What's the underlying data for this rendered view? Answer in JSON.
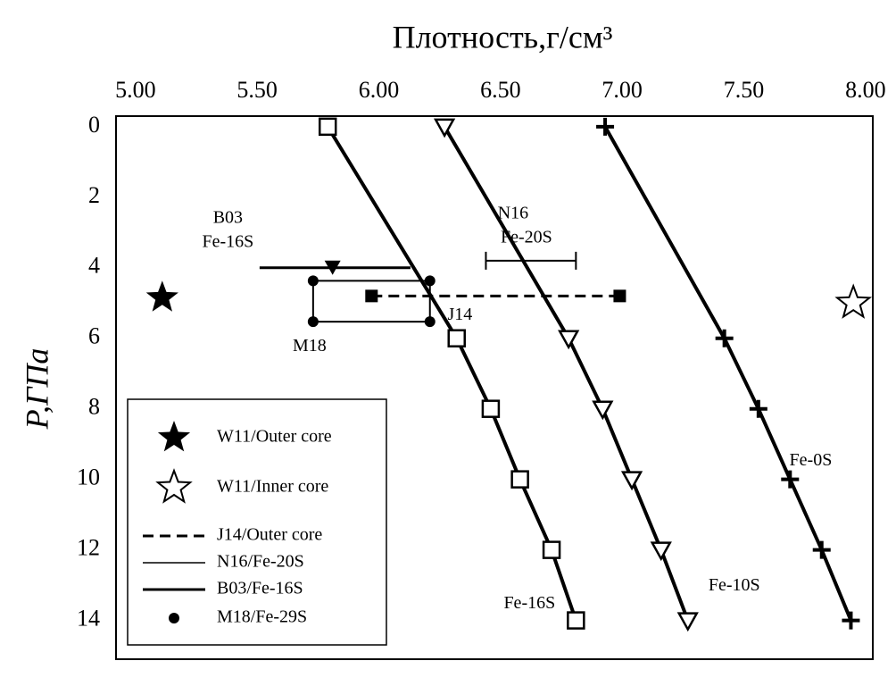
{
  "chart_data": {
    "type": "line",
    "title": "Плотность,г/см³",
    "ylabel": "P,ГПа",
    "xlim": [
      4.92,
      8.03
    ],
    "ylim": [
      -0.3,
      15.1
    ],
    "y_inverted": true,
    "xticks": [
      {
        "value": 5,
        "label": "5.00"
      },
      {
        "value": 5.5,
        "label": "5.50"
      },
      {
        "value": 6,
        "label": "6.00"
      },
      {
        "value": 6.5,
        "label": "6.50"
      },
      {
        "value": 7,
        "label": "7.00"
      },
      {
        "value": 7.5,
        "label": "7.50"
      },
      {
        "value": 8,
        "label": "8.00"
      }
    ],
    "yticks": [
      0,
      2,
      4,
      6,
      8,
      10,
      12,
      14
    ],
    "color": "#000000",
    "series": [
      {
        "name": "Fe-16S",
        "marker": "square",
        "x": [
          5.79,
          6.32,
          6.46,
          6.58,
          6.71,
          6.81
        ],
        "values": [
          0,
          6,
          8,
          10,
          12,
          14
        ]
      },
      {
        "name": "Fe-10S",
        "marker": "triangle",
        "x": [
          6.27,
          6.78,
          6.92,
          7.04,
          7.16,
          7.27
        ],
        "values": [
          0,
          6,
          8,
          10,
          12,
          14
        ]
      },
      {
        "name": "Fe-0S",
        "marker": "cross",
        "x": [
          6.93,
          7.42,
          7.56,
          7.69,
          7.82,
          7.94
        ],
        "values": [
          0,
          6,
          8,
          10,
          12,
          14
        ]
      }
    ],
    "points": [
      {
        "name": "W11/Outer core",
        "marker": "star-filled",
        "x": 5.11,
        "y": 4.85
      },
      {
        "name": "W11/Inner core",
        "marker": "star-open",
        "x": 7.95,
        "y": 5.0
      }
    ],
    "ranges": [
      {
        "name": "J14/Outer core",
        "label": [
          "J14"
        ],
        "style": "dashed",
        "x": [
          5.97,
          6.99
        ],
        "y": 4.8
      },
      {
        "name": "N16/Fe-20S",
        "label": [
          "N16",
          "Fe-20S"
        ],
        "style": "thin",
        "x": [
          6.44,
          6.81
        ],
        "y": 3.8
      },
      {
        "name": "B03/Fe-16S",
        "label": [
          "B03",
          "Fe-16S"
        ],
        "style": "thick",
        "x": [
          5.51,
          6.13
        ],
        "y": 4.0,
        "point": 5.81
      }
    ],
    "box": {
      "name": "M18/Fe-29S",
      "label": "M18",
      "x": [
        5.73,
        6.21
      ],
      "y": [
        4.37,
        5.53
      ]
    }
  }
}
